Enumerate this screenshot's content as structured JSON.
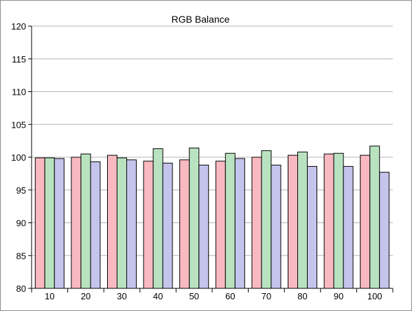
{
  "chart_data": {
    "type": "bar",
    "title": "RGB Balance",
    "xlabel": "",
    "ylabel": "",
    "categories": [
      "10",
      "20",
      "30",
      "40",
      "50",
      "60",
      "70",
      "80",
      "90",
      "100"
    ],
    "series": [
      {
        "color": "#f9b9c0",
        "values": [
          99.9,
          100.0,
          100.3,
          99.4,
          99.6,
          99.4,
          100.0,
          100.3,
          100.5,
          100.3
        ]
      },
      {
        "color": "#b9e3c0",
        "values": [
          99.9,
          100.5,
          99.9,
          101.3,
          101.4,
          100.6,
          101.0,
          100.8,
          100.6,
          101.7
        ]
      },
      {
        "color": "#c4c4ec",
        "values": [
          99.8,
          99.3,
          99.6,
          99.1,
          98.8,
          99.8,
          98.8,
          98.6,
          98.6,
          97.7
        ]
      }
    ],
    "ylim": [
      80,
      120
    ],
    "yticks": [
      "80",
      "85",
      "90",
      "95",
      "100",
      "105",
      "110",
      "115",
      "120"
    ],
    "grid": true,
    "legend": "none"
  }
}
